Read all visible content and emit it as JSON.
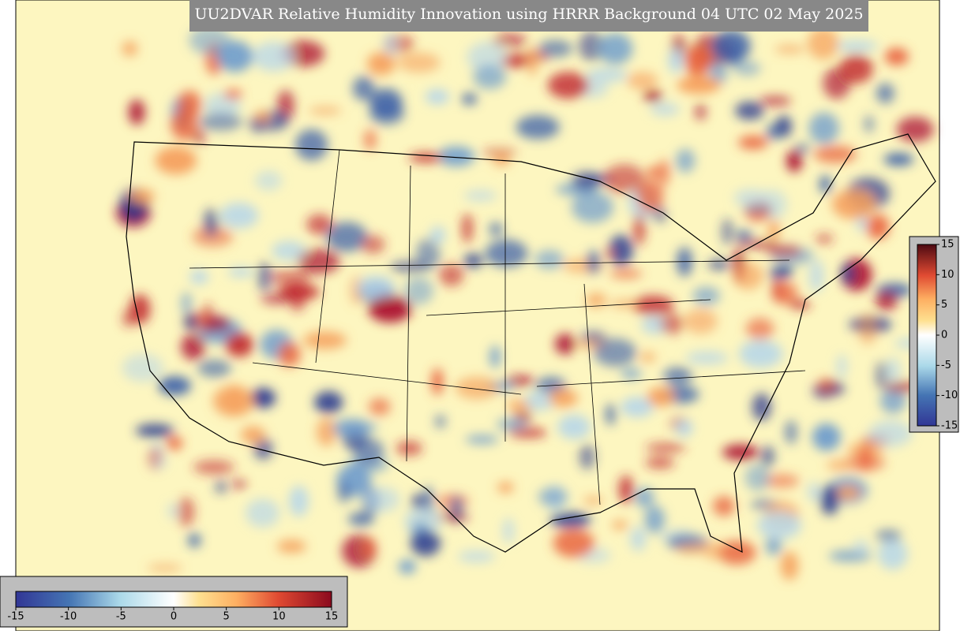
{
  "title": "UU2DVAR Relative Humidity Innovation using HRRR Background 04 UTC 02 May 2025",
  "colorbar_bottom": {
    "ticks": [
      -15,
      -10,
      -5,
      0,
      5,
      10,
      15
    ]
  },
  "colorbar_right": {
    "ticks": [
      -15,
      -10,
      -5,
      0,
      5,
      10,
      15
    ]
  }
}
